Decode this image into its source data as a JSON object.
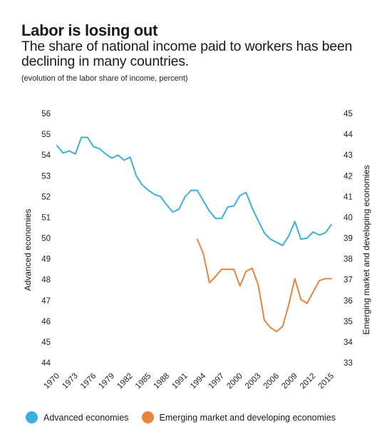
{
  "header": {
    "title": "Labor is losing out",
    "subtitle": "The share of national income paid to workers has been declining in many countries.",
    "note": "(evolution of the labor share of income, percent)"
  },
  "chart_data": {
    "type": "line",
    "left_axis": {
      "label": "Advanced economies",
      "ylim": [
        44,
        56
      ],
      "ticks": [
        "56",
        "55",
        "54",
        "53",
        "52",
        "51",
        "50",
        "49",
        "48",
        "47",
        "46",
        "45",
        "44"
      ]
    },
    "right_axis": {
      "label": "Emerging market and developing economies",
      "ylim": [
        33,
        45
      ],
      "ticks": [
        "45",
        "44",
        "43",
        "42",
        "41",
        "40",
        "39",
        "38",
        "37",
        "36",
        "35",
        "34",
        "33"
      ]
    },
    "x_ticks": [
      "1970",
      "1973",
      "1976",
      "1979",
      "1982",
      "1985",
      "1988",
      "1991",
      "1994",
      "1997",
      "2000",
      "2003",
      "2006",
      "2009",
      "2012",
      "2015"
    ],
    "grid": false,
    "legend_position": "bottom",
    "series": [
      {
        "name": "Advanced economies",
        "axis": "left",
        "color": "#3ab0de",
        "x": [
          1970,
          1971,
          1972,
          1973,
          1974,
          1975,
          1976,
          1977,
          1978,
          1979,
          1980,
          1981,
          1982,
          1983,
          1984,
          1985,
          1986,
          1987,
          1988,
          1989,
          1990,
          1991,
          1992,
          1993,
          1994,
          1995,
          1996,
          1997,
          1998,
          1999,
          2000,
          2001,
          2002,
          2003,
          2004,
          2005,
          2006,
          2007,
          2008,
          2009,
          2010,
          2011,
          2012,
          2013,
          2014,
          2015
        ],
        "values": [
          54.45,
          54.1,
          54.2,
          54.05,
          54.85,
          54.85,
          54.4,
          54.3,
          54.05,
          53.85,
          54.0,
          53.75,
          53.9,
          53.0,
          52.55,
          52.3,
          52.1,
          52.0,
          51.6,
          51.25,
          51.4,
          52.0,
          52.3,
          52.3,
          51.8,
          51.3,
          50.95,
          50.95,
          51.5,
          51.55,
          52.05,
          52.2,
          51.45,
          50.85,
          50.25,
          49.95,
          49.8,
          49.65,
          50.1,
          50.8,
          49.95,
          50.0,
          50.3,
          50.15,
          50.25,
          50.65
        ]
      },
      {
        "name": "Emerging market and developing economies",
        "axis": "right",
        "color": "#e8853d",
        "x": [
          1993,
          1994,
          1995,
          1996,
          1997,
          1998,
          1999,
          2000,
          2001,
          2002,
          2003,
          2004,
          2005,
          2006,
          2007,
          2008,
          2009,
          2010,
          2011,
          2012,
          2013,
          2014,
          2015
        ],
        "values": [
          38.95,
          38.25,
          36.85,
          37.15,
          37.5,
          37.5,
          37.5,
          36.7,
          37.4,
          37.55,
          36.75,
          35.05,
          34.7,
          34.5,
          34.75,
          35.8,
          37.05,
          36.05,
          35.85,
          36.4,
          36.95,
          37.05,
          37.05
        ]
      }
    ]
  },
  "legend": {
    "items": [
      {
        "label": "Advanced economies",
        "color": "#3ab0de"
      },
      {
        "label": "Emerging market and developing economies",
        "color": "#e8853d"
      }
    ]
  }
}
